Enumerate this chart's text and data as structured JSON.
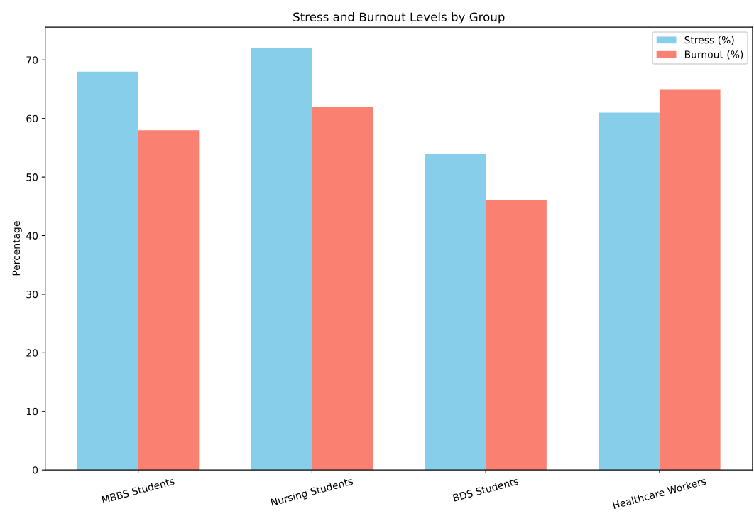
{
  "chart_data": {
    "type": "bar",
    "title": "Stress and Burnout Levels by Group",
    "ylabel": "Percentage",
    "categories": [
      "MBBS Students",
      "Nursing Students",
      "BDS Students",
      "Healthcare Workers"
    ],
    "series": [
      {
        "name": "Stress (%)",
        "color": "#87ceeb",
        "values": [
          68,
          72,
          54,
          61
        ]
      },
      {
        "name": "Burnout (%)",
        "color": "#fa8072",
        "values": [
          58,
          62,
          46,
          65
        ]
      }
    ],
    "ylim": [
      0,
      75.6
    ],
    "yticks": [
      0,
      10,
      20,
      30,
      40,
      50,
      60,
      70
    ],
    "grid": false,
    "legend": "top right"
  }
}
